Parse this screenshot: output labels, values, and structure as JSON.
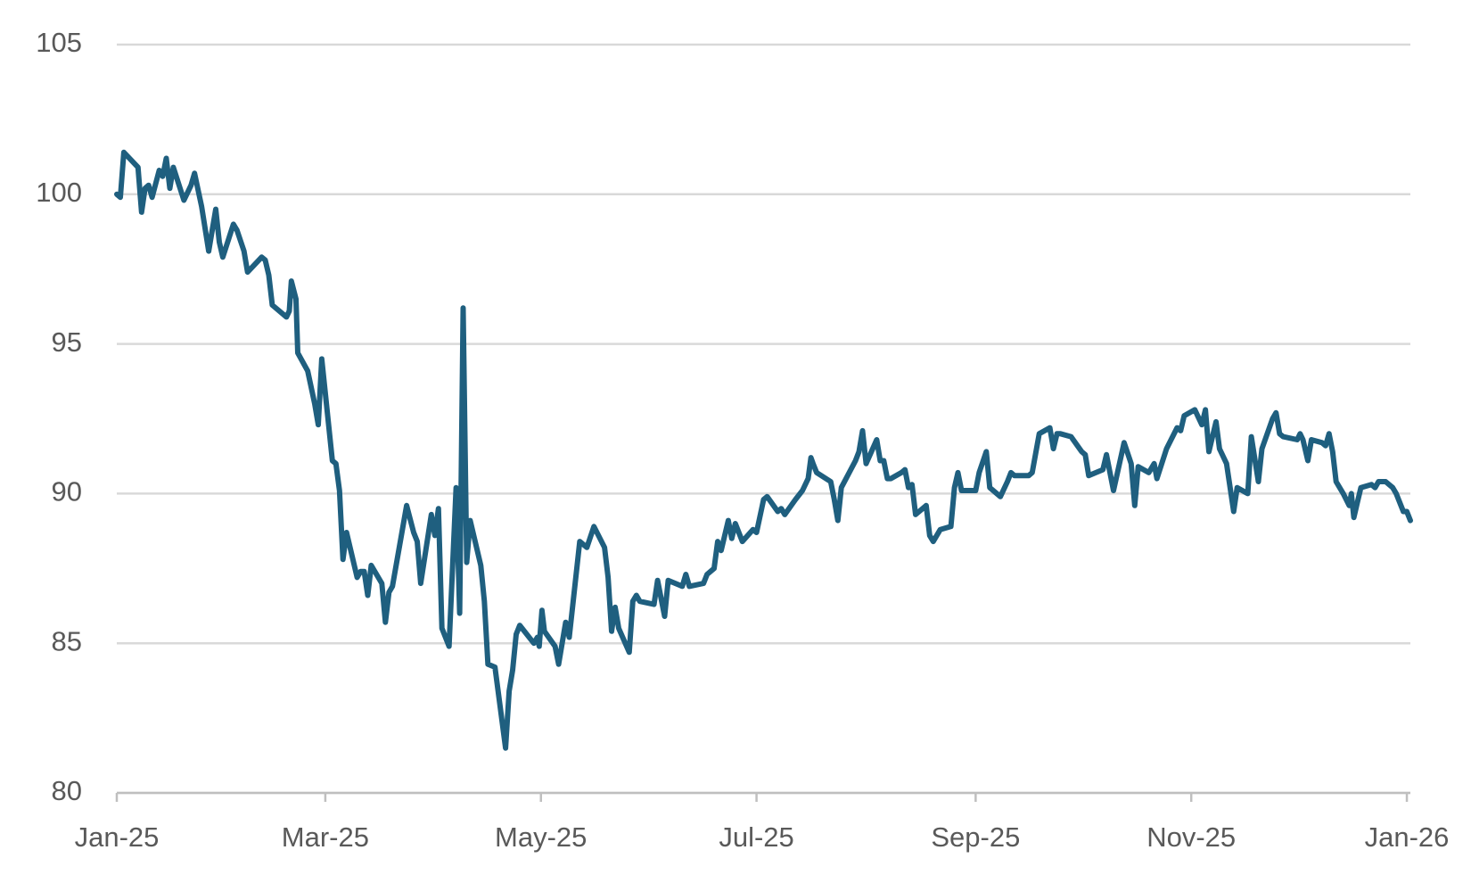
{
  "chart_data": {
    "type": "line",
    "color": "#1f5f7f",
    "grid": true,
    "xlim": [
      0,
      366
    ],
    "ylim": [
      80,
      105
    ],
    "yticks": [
      80,
      85,
      90,
      95,
      100,
      105
    ],
    "xticks": [
      {
        "value": 0,
        "label": "Jan-25"
      },
      {
        "value": 59,
        "label": "Mar-25"
      },
      {
        "value": 120,
        "label": "May-25"
      },
      {
        "value": 181,
        "label": "Jul-25"
      },
      {
        "value": 243,
        "label": "Sep-25"
      },
      {
        "value": 304,
        "label": "Nov-25"
      },
      {
        "value": 365,
        "label": "Jan-26"
      }
    ],
    "x": [
      0,
      1,
      2,
      6,
      7,
      8,
      9,
      10,
      12,
      13,
      14,
      15,
      16,
      19,
      21,
      22,
      24,
      26,
      28,
      29,
      30,
      33,
      34,
      36,
      37,
      41,
      42,
      43,
      44,
      48,
      48.8,
      49.4,
      50.7,
      51.2,
      54,
      56,
      57,
      58,
      61,
      62,
      63,
      64,
      65,
      68,
      69,
      70,
      71,
      72,
      75,
      76,
      77,
      78,
      82,
      84,
      85,
      86,
      89,
      90,
      91,
      92,
      94,
      96,
      97,
      98,
      99,
      100,
      103,
      104,
      105,
      107,
      110,
      111,
      112,
      113,
      114,
      118,
      119,
      119.5,
      120.3,
      121,
      124,
      125,
      127,
      128,
      131,
      133,
      135,
      138,
      139,
      140,
      141,
      142,
      145,
      146,
      147,
      148,
      152,
      153,
      155,
      156,
      160,
      161,
      162,
      166,
      167,
      169,
      170,
      171,
      173,
      174,
      175,
      177,
      180,
      181,
      183,
      184,
      187,
      188,
      189,
      192,
      194,
      195.6,
      196.4,
      197,
      198,
      202,
      203,
      204,
      205,
      209,
      210,
      211,
      212,
      215,
      216,
      217,
      218,
      219,
      222,
      223,
      224,
      225,
      226,
      229,
      230,
      231,
      233,
      236,
      237,
      238,
      239,
      243,
      244,
      246,
      247,
      250,
      252,
      253,
      254,
      257,
      258,
      259,
      261,
      264,
      265,
      266,
      267,
      270,
      273,
      274,
      275,
      277,
      279,
      280,
      282,
      285,
      287,
      288,
      289,
      292,
      293.5,
      294.3,
      297,
      300,
      301,
      302,
      305,
      307,
      308,
      309,
      311,
      312,
      314,
      316,
      317,
      320,
      321,
      323,
      324,
      327,
      328,
      329,
      330,
      334,
      334.8,
      335.6,
      337,
      338,
      341,
      342,
      343,
      344,
      345,
      347,
      348.7,
      349.3,
      350,
      351,
      352,
      355,
      356,
      357,
      359,
      361,
      362,
      364,
      365,
      366
    ],
    "values": [
      100.0,
      99.9,
      101.4,
      100.9,
      99.4,
      100.2,
      100.3,
      99.9,
      100.8,
      100.6,
      101.2,
      100.2,
      100.9,
      99.8,
      100.3,
      100.7,
      99.6,
      98.1,
      99.5,
      98.4,
      97.9,
      99.0,
      98.8,
      98.1,
      97.4,
      97.9,
      97.8,
      97.3,
      96.3,
      95.9,
      96.1,
      97.1,
      96.5,
      94.7,
      94.1,
      93.0,
      92.3,
      94.5,
      91.1,
      91.0,
      90.1,
      87.8,
      88.7,
      87.2,
      87.4,
      87.4,
      86.6,
      87.6,
      87.0,
      85.7,
      86.7,
      86.9,
      89.6,
      88.7,
      88.4,
      87.0,
      89.3,
      88.6,
      89.5,
      85.5,
      84.9,
      90.2,
      86.0,
      96.2,
      87.7,
      89.1,
      87.6,
      86.4,
      84.3,
      84.2,
      81.5,
      83.4,
      84.1,
      85.3,
      85.6,
      85.0,
      85.2,
      84.9,
      86.1,
      85.4,
      84.9,
      84.3,
      85.7,
      85.2,
      88.4,
      88.2,
      88.9,
      88.2,
      87.2,
      85.4,
      86.2,
      85.5,
      84.7,
      86.4,
      86.6,
      86.4,
      86.3,
      87.1,
      85.9,
      87.1,
      86.9,
      87.3,
      86.9,
      87.0,
      87.3,
      87.5,
      88.4,
      88.1,
      89.1,
      88.5,
      89.0,
      88.4,
      88.8,
      88.7,
      89.8,
      89.9,
      89.4,
      89.5,
      89.3,
      89.8,
      90.1,
      90.5,
      91.2,
      91.0,
      90.7,
      90.4,
      89.8,
      89.1,
      90.2,
      91.1,
      91.4,
      92.1,
      91.0,
      91.8,
      91.1,
      91.1,
      90.5,
      90.5,
      90.7,
      90.8,
      90.2,
      90.3,
      89.3,
      89.6,
      88.6,
      88.4,
      88.8,
      88.9,
      90.2,
      90.7,
      90.1,
      90.1,
      90.7,
      91.4,
      90.2,
      89.9,
      90.4,
      90.7,
      90.6,
      90.6,
      90.6,
      90.7,
      92.0,
      92.2,
      91.5,
      92.0,
      92.0,
      91.9,
      91.4,
      91.3,
      90.6,
      90.7,
      90.8,
      91.3,
      90.1,
      91.7,
      91.0,
      89.6,
      90.9,
      90.7,
      91.0,
      90.5,
      91.5,
      92.2,
      92.1,
      92.6,
      92.8,
      92.3,
      92.8,
      91.4,
      92.4,
      91.5,
      91.0,
      89.4,
      90.2,
      90.0,
      91.9,
      90.4,
      91.5,
      92.5,
      92.7,
      92.0,
      91.9,
      91.8,
      92.0,
      91.8,
      91.1,
      91.8,
      91.7,
      91.6,
      92.0,
      91.4,
      90.4,
      90.0,
      89.6,
      90.0,
      89.2,
      89.7,
      90.2,
      90.3,
      90.2,
      90.4,
      90.4,
      90.2,
      90.0,
      89.4,
      89.4,
      89.1
    ]
  }
}
